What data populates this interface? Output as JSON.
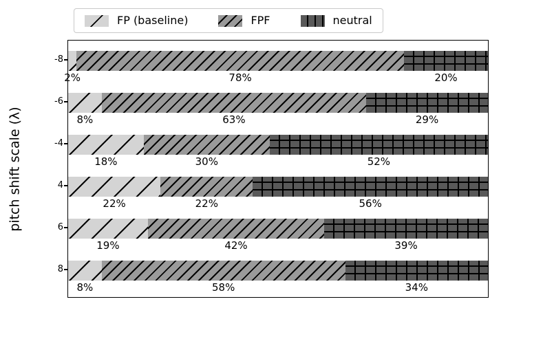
{
  "axis": {
    "ylabel": "pitch shift scale (λ)",
    "tick_labels": [
      "-8",
      "-6",
      "-4",
      "4",
      "6",
      "8"
    ]
  },
  "legend": {
    "items": [
      {
        "label": "FP (baseline)",
        "swatch": "light-gray-diagonal-hatch"
      },
      {
        "label": "FPF",
        "swatch": "medium-gray-diagonal-hatch"
      },
      {
        "label": "neutral",
        "swatch": "dark-gray-grid-hatch"
      }
    ]
  },
  "colors": {
    "fp_baseline": "#d4d4d4",
    "fpf": "#9a9a9a",
    "neutral": "#595959",
    "hatch_lines": "#000000",
    "background": "#ffffff"
  },
  "chart_data": {
    "type": "bar",
    "orientation": "horizontal",
    "stacked": true,
    "title": "",
    "xlabel": "",
    "ylabel": "pitch shift scale (λ)",
    "categories": [
      "-8",
      "-6",
      "-4",
      "4",
      "6",
      "8"
    ],
    "series": [
      {
        "name": "FP (baseline)",
        "hatch": "/",
        "color": "#d4d4d4",
        "values": [
          2,
          8,
          18,
          22,
          19,
          8
        ]
      },
      {
        "name": "FPF",
        "hatch": "//",
        "color": "#9a9a9a",
        "values": [
          78,
          63,
          30,
          22,
          42,
          58
        ]
      },
      {
        "name": "neutral",
        "hatch": "+",
        "color": "#595959",
        "values": [
          20,
          29,
          52,
          56,
          39,
          34
        ]
      }
    ],
    "bar_labels": [
      [
        "2%",
        "78%",
        "20%"
      ],
      [
        "8%",
        "63%",
        "29%"
      ],
      [
        "18%",
        "30%",
        "52%"
      ],
      [
        "22%",
        "22%",
        "56%"
      ],
      [
        "19%",
        "42%",
        "39%"
      ],
      [
        "8%",
        "58%",
        "34%"
      ]
    ],
    "xlim": [
      0,
      100
    ],
    "grid": false,
    "legend_position": "top-center"
  }
}
